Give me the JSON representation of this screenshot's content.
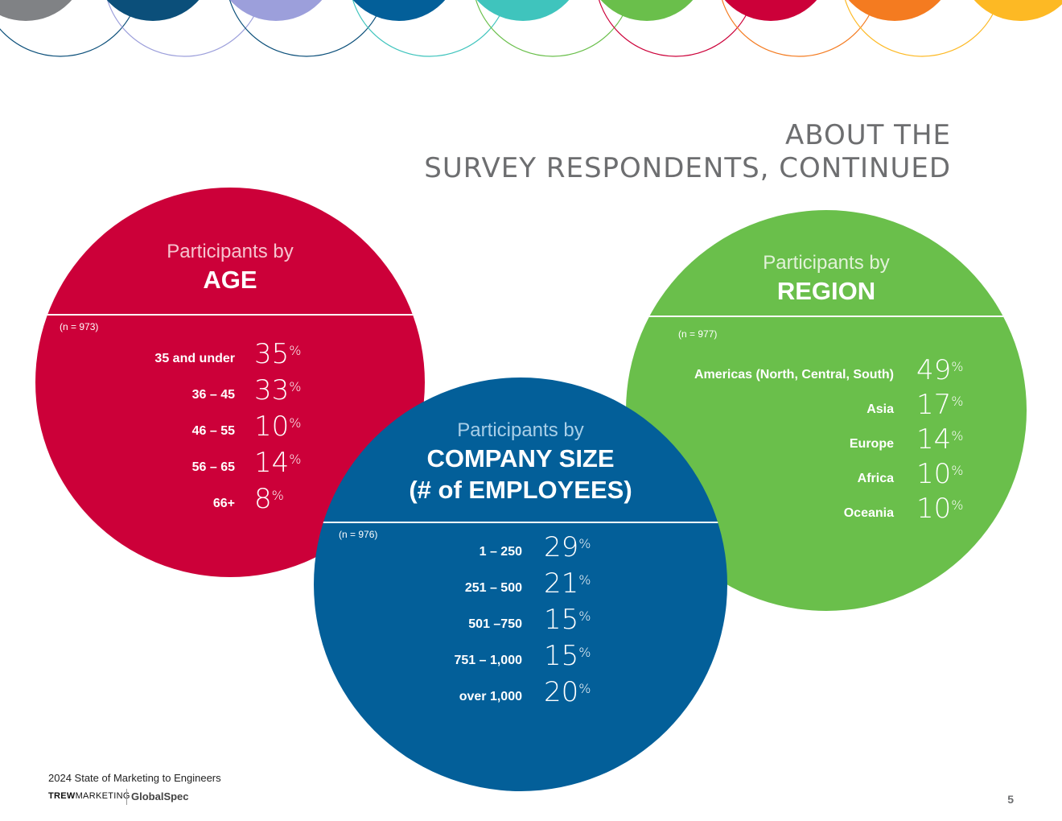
{
  "title": {
    "line1": "ABOUT THE",
    "line2": "SURVEY RESPONDENTS, CONTINUED"
  },
  "colors": {
    "gray": "#808285",
    "navy": "#0b4f7a",
    "lavender": "#9c9fdb",
    "blue": "#035f99",
    "teal": "#3fc4bd",
    "green": "#6abf4b",
    "red": "#cc0039",
    "orange": "#f47b20",
    "yellow": "#fdb924"
  },
  "age": {
    "subtitle": "Participants by",
    "heading": "AGE",
    "n": "(n = 973)",
    "rows": [
      {
        "label": "35 and under",
        "value": "35",
        "unit": "%"
      },
      {
        "label": "36 – 45",
        "value": "33",
        "unit": "%"
      },
      {
        "label": "46 – 55",
        "value": "10",
        "unit": "%"
      },
      {
        "label": "56 – 65",
        "value": "14",
        "unit": "%"
      },
      {
        "label": "66+",
        "value": "8",
        "unit": "%"
      }
    ]
  },
  "region": {
    "subtitle": "Participants by",
    "heading": "REGION",
    "n": "(n = 977)",
    "rows": [
      {
        "label": "Americas (North, Central, South)",
        "value": "49",
        "unit": "%"
      },
      {
        "label": "Asia",
        "value": "17",
        "unit": "%"
      },
      {
        "label": "Europe",
        "value": "14",
        "unit": "%"
      },
      {
        "label": "Africa",
        "value": "10",
        "unit": "%"
      },
      {
        "label": "Oceania",
        "value": "10",
        "unit": "%"
      }
    ]
  },
  "company_size": {
    "subtitle": "Participants by",
    "heading_line1": "COMPANY SIZE",
    "heading_line2": "(# of EMPLOYEES)",
    "n": "(n = 976)",
    "rows": [
      {
        "label": "1 – 250",
        "value": "29",
        "unit": "%"
      },
      {
        "label": "251 – 500",
        "value": "21",
        "unit": "%"
      },
      {
        "label": "501 –750",
        "value": "15",
        "unit": "%"
      },
      {
        "label": "751 – 1,000",
        "value": "15",
        "unit": "%"
      },
      {
        "label": "over 1,000",
        "value": "20",
        "unit": "%"
      }
    ]
  },
  "footer": {
    "report_title": "2024 State of Marketing to Engineers",
    "logo_trew_bold": "TREW",
    "logo_trew_rest": "MARKETING",
    "logo_globalspec": "GlobalSpec",
    "page_number": "5"
  }
}
